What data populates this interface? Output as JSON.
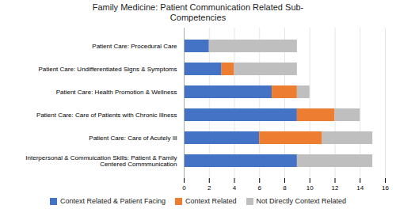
{
  "chart_data": {
    "type": "bar",
    "title": "Family Medicine: Patient Communication Related Sub-\nCompetencies",
    "orientation": "horizontal",
    "stacked": true,
    "categories": [
      "Interpersonal & Commuication Skills: Patient & Family\nCentered Commmunication",
      "Patient Care: Care of Acutely Ill",
      "Patient Care: Care of Patients with Chronic Illness",
      "Patient Care: Health Promotion & Wellness",
      "Patient Care: Undifferentiated Signs & Symptoms",
      "Patient Care: Procedural Care"
    ],
    "series": [
      {
        "name": "Context Related & Patient Facing",
        "color": "#4472C4",
        "values": [
          9,
          6,
          9,
          7,
          3,
          2
        ]
      },
      {
        "name": "Context Related",
        "color": "#ED7D31",
        "values": [
          0,
          5,
          3,
          2,
          1,
          0
        ]
      },
      {
        "name": "Not Directly Context Related",
        "color": "#BFBFBF",
        "values": [
          6,
          4,
          2,
          1,
          5,
          7
        ]
      }
    ],
    "xlim": [
      0,
      16
    ],
    "xticks": [
      0,
      2,
      4,
      6,
      8,
      10,
      12,
      14,
      16
    ],
    "grid": true,
    "legend": "bottom"
  }
}
